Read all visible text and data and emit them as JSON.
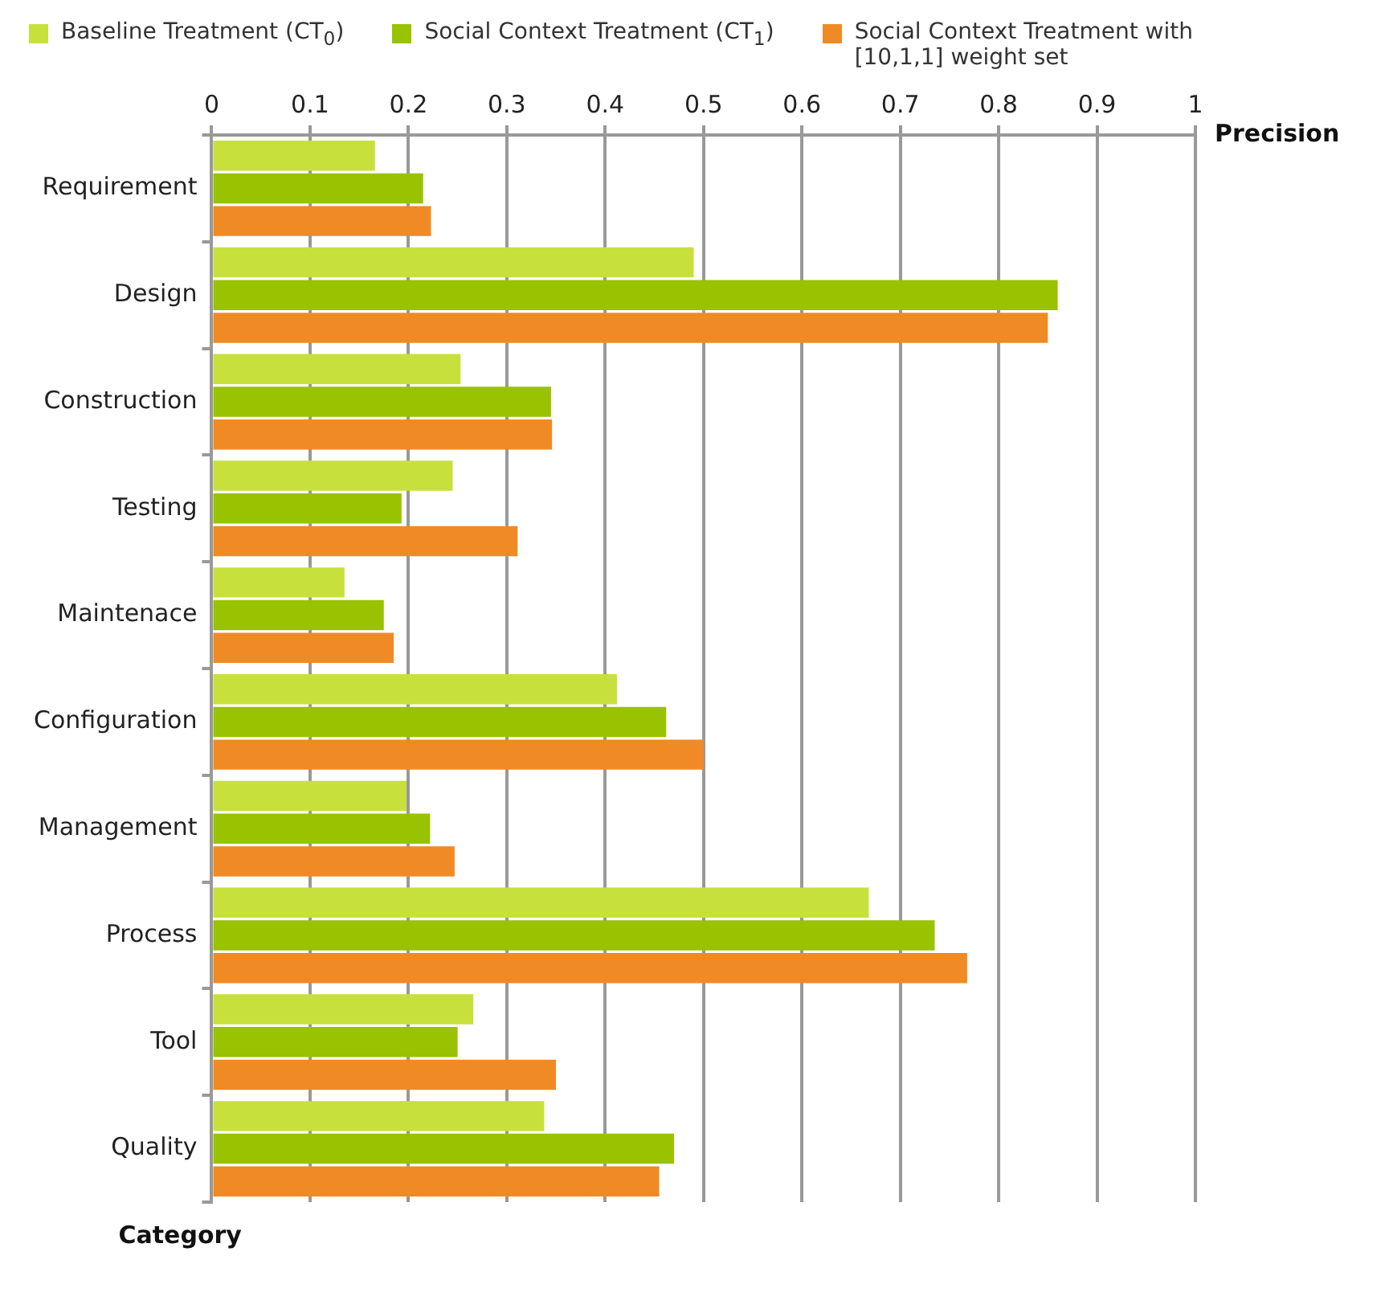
{
  "chart_data": {
    "type": "bar",
    "orientation": "horizontal",
    "xlabel": "Precision",
    "ylabel": "Category",
    "categories": [
      "Requirement",
      "Design",
      "Construction",
      "Testing",
      "Maintenace",
      "Configuration",
      "Management",
      "Process",
      "Tool",
      "Quality"
    ],
    "series": [
      {
        "name": "Baseline Treatment (CT$_{0}$)",
        "color": "#c8e03c",
        "values": [
          0.166,
          0.49,
          0.253,
          0.245,
          0.135,
          0.412,
          0.198,
          0.668,
          0.266,
          0.338
        ]
      },
      {
        "name": "Social Context Treatment (CT$_{1}$)",
        "color": "#99c200",
        "values": [
          0.215,
          0.86,
          0.345,
          0.193,
          0.175,
          0.462,
          0.222,
          0.735,
          0.25,
          0.47
        ]
      },
      {
        "name": "Social Context Treatment with [10,1,1] weight set",
        "color": "#f08a24",
        "values": [
          0.223,
          0.85,
          0.346,
          0.311,
          0.185,
          0.5,
          0.247,
          0.768,
          0.35,
          0.455
        ]
      }
    ],
    "xlim": [
      0,
      1
    ],
    "xticks": [
      0,
      0.1,
      0.2,
      0.3,
      0.4,
      0.5,
      0.6,
      0.7,
      0.8,
      0.9,
      1
    ],
    "grid": "x",
    "legend": "top"
  }
}
